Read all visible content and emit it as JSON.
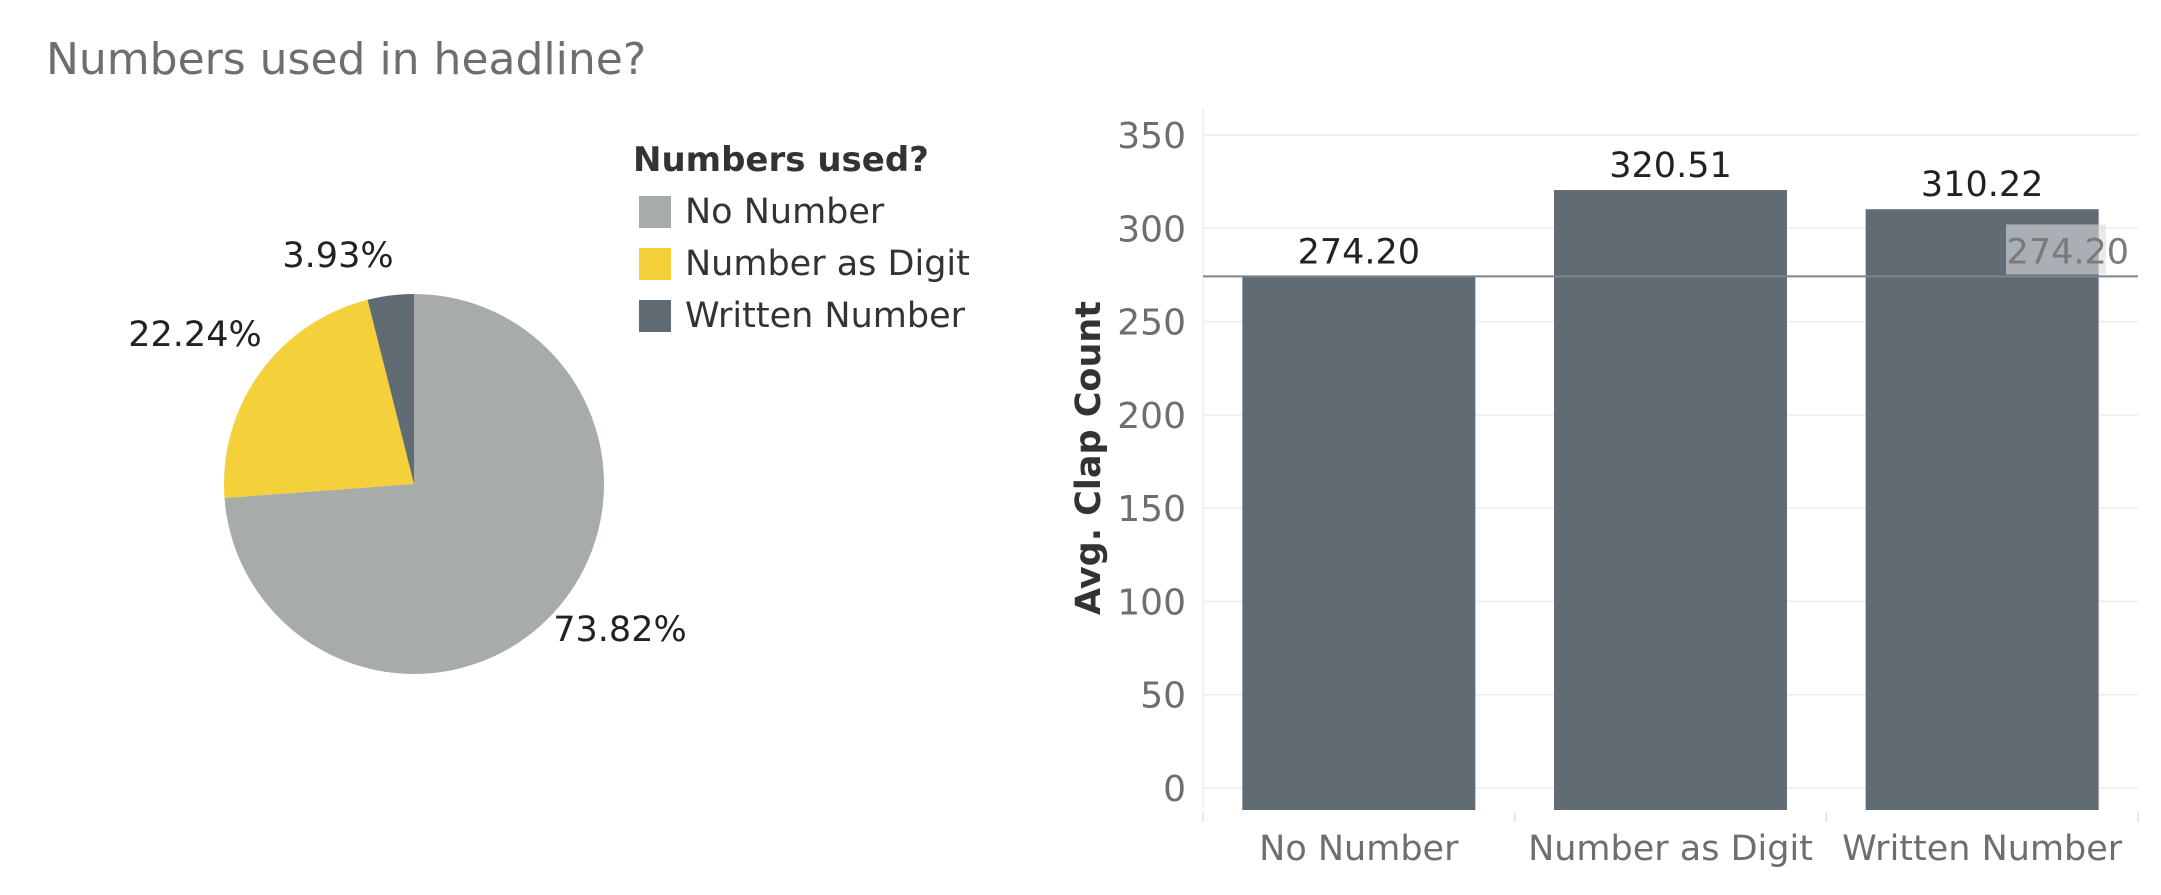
{
  "page": {
    "title": "Numbers used in headline?"
  },
  "legend": {
    "title": "Numbers used?",
    "items": [
      {
        "label": "No Number",
        "color": "#a7abaa"
      },
      {
        "label": "Number as Digit",
        "color": "#f4d03a"
      },
      {
        "label": "Written Number",
        "color": "#616b74"
      }
    ]
  },
  "chart_data": [
    {
      "type": "pie",
      "categories": [
        "No Number",
        "Number as Digit",
        "Written Number"
      ],
      "values": [
        73.82,
        22.24,
        3.93
      ],
      "labels": [
        "73.82%",
        "22.24%",
        "3.93%"
      ],
      "colors": [
        "#a7abaa",
        "#f4d03a",
        "#616b74"
      ]
    },
    {
      "type": "bar",
      "categories": [
        "No Number",
        "Number as Digit",
        "Written Number"
      ],
      "values": [
        274.2,
        320.51,
        310.22
      ],
      "labels": [
        "274.20",
        "320.51",
        "310.22"
      ],
      "ylabel": "Avg. Clap Count",
      "ylim": [
        0,
        350
      ],
      "yticks": [
        0,
        50,
        100,
        150,
        200,
        250,
        300,
        350
      ],
      "bar_color": "#616b74",
      "reference_line": {
        "value": 274.2,
        "label": "274.20"
      },
      "grid": true
    }
  ]
}
